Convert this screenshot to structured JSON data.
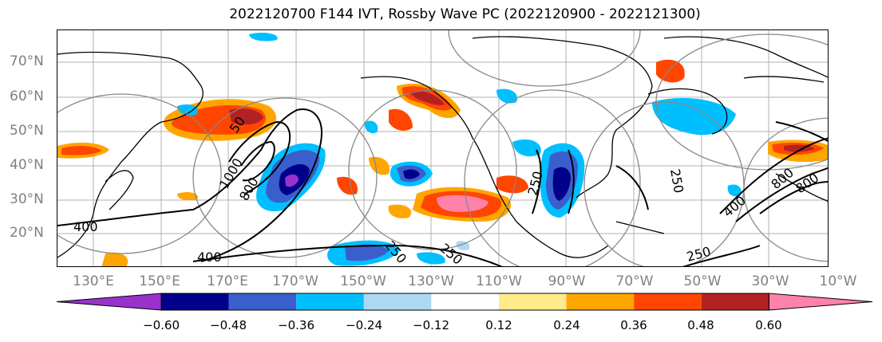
{
  "title": "2022120700 F144 IVT, Rossby Wave PC (2022120900 - 2022121300)",
  "lat_labels": [
    "70°N",
    "60°N",
    "50°N",
    "40°N",
    "30°N",
    "20°N"
  ],
  "lon_labels": [
    "130°E",
    "150°E",
    "170°E",
    "170°W",
    "150°W",
    "130°W",
    "110°W",
    "90°W",
    "70°W",
    "50°W",
    "30°W",
    "10°W"
  ],
  "contour_labels": [
    "50",
    "1000",
    "800",
    "400",
    "400",
    "250",
    "250",
    "250",
    "250",
    "250",
    "400",
    "800",
    "800"
  ],
  "colorbar": {
    "ticks": [
      "−0.60",
      "−0.48",
      "−0.36",
      "−0.24",
      "−0.12",
      "0.12",
      "0.24",
      "0.36",
      "0.48",
      "0.60"
    ],
    "colors": [
      "#9932cc",
      "#00008b",
      "#3a5fcd",
      "#00bfff",
      "#add8f4",
      "#ffffff",
      "#ffeb8a",
      "#ffa500",
      "#ff4500",
      "#b22222",
      "#ff82ab"
    ]
  }
}
